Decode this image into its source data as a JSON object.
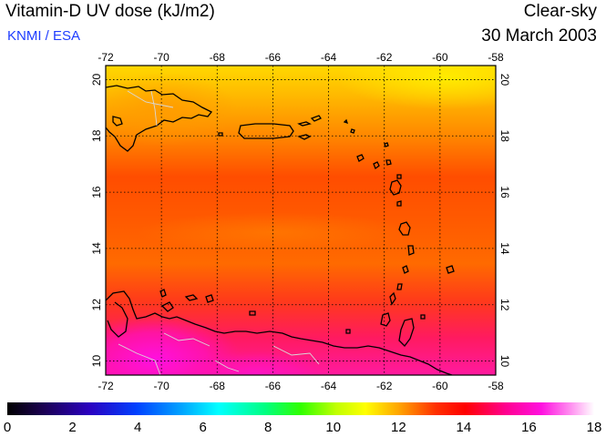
{
  "header": {
    "title": "Vitamin-D UV dose (kJ/m2)",
    "source": "KNMI / ESA",
    "condition": "Clear-sky",
    "date": "30 March 2003"
  },
  "map": {
    "lon_ticks": [
      "-72",
      "-70",
      "-68",
      "-66",
      "-64",
      "-62",
      "-60",
      "-58"
    ],
    "lat_ticks": [
      "10",
      "12",
      "14",
      "16",
      "18",
      "20"
    ],
    "lon_range": [
      -72,
      -58
    ],
    "lat_range": [
      9.5,
      20.5
    ],
    "grid": true,
    "colors": {
      "coastline": "#000000",
      "borders": "#cccccc"
    }
  },
  "colorbar": {
    "min": 0,
    "max": 18,
    "labels": [
      "0",
      "2",
      "4",
      "6",
      "8",
      "10",
      "12",
      "14",
      "16",
      "18"
    ]
  }
}
